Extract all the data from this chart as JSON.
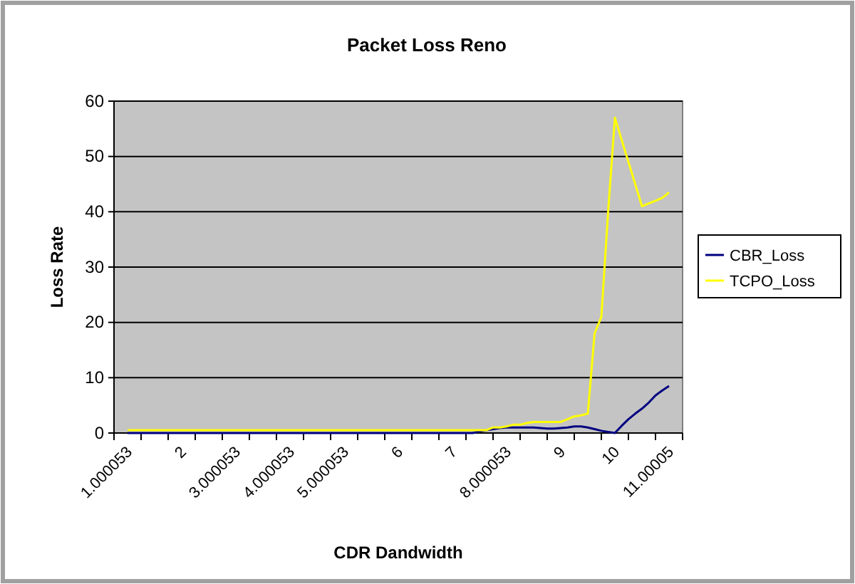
{
  "chart_data": {
    "type": "line",
    "title": "Packet Loss Reno",
    "xlabel": "CDR Dandwidth",
    "ylabel": "Loss Rate",
    "categories": [
      "1.000053",
      null,
      null,
      null,
      null,
      null,
      null,
      null,
      "2",
      null,
      null,
      null,
      null,
      null,
      null,
      null,
      "3.000053",
      null,
      null,
      null,
      null,
      null,
      null,
      null,
      "4.000053",
      null,
      null,
      null,
      null,
      null,
      null,
      null,
      "5.000053",
      null,
      null,
      null,
      null,
      null,
      null,
      null,
      "6",
      null,
      null,
      null,
      null,
      null,
      null,
      null,
      "7",
      null,
      null,
      null,
      null,
      null,
      null,
      null,
      "8.000053",
      null,
      null,
      null,
      null,
      null,
      null,
      null,
      "9",
      null,
      null,
      null,
      null,
      null,
      null,
      null,
      "10",
      null,
      null,
      null,
      null,
      null,
      null,
      null,
      "11.00005"
    ],
    "series": [
      {
        "name": "CBR_Loss",
        "color": "#000080",
        "values": [
          0,
          0,
          0,
          0,
          0,
          0,
          0,
          0,
          0,
          0,
          0,
          0,
          0,
          0,
          0,
          0,
          0,
          0,
          0,
          0,
          0,
          0,
          0,
          0,
          0,
          0,
          0,
          0,
          0,
          0,
          0,
          0,
          0,
          0,
          0,
          0,
          0,
          0,
          0,
          0,
          0,
          0,
          0,
          0,
          0,
          0,
          0,
          0,
          0,
          0,
          0,
          0,
          0.3,
          0.5,
          0.7,
          0.9,
          1,
          1,
          1,
          1,
          1,
          0.9,
          0.8,
          0.8,
          0.9,
          1,
          1.2,
          1.2,
          1,
          0.7,
          0.4,
          0.2,
          0,
          1.3,
          2.5,
          3.5,
          4.4,
          5.5,
          6.8,
          7.7,
          8.5
        ]
      },
      {
        "name": "TCPO_Loss",
        "color": "#ffff00",
        "values": [
          0.5,
          0.5,
          0.5,
          0.5,
          0.5,
          0.5,
          0.5,
          0.5,
          0.5,
          0.5,
          0.5,
          0.5,
          0.5,
          0.5,
          0.5,
          0.5,
          0.5,
          0.5,
          0.5,
          0.5,
          0.5,
          0.5,
          0.5,
          0.5,
          0.5,
          0.5,
          0.5,
          0.5,
          0.5,
          0.5,
          0.5,
          0.5,
          0.5,
          0.5,
          0.5,
          0.5,
          0.5,
          0.5,
          0.5,
          0.5,
          0.5,
          0.5,
          0.5,
          0.5,
          0.5,
          0.5,
          0.5,
          0.5,
          0.5,
          0.5,
          0.5,
          0.5,
          0.5,
          0.5,
          1,
          1,
          1.2,
          1.5,
          1.5,
          1.8,
          2,
          2,
          2,
          2,
          2,
          2.5,
          3,
          3.2,
          3.5,
          18,
          21,
          40,
          57,
          53,
          49,
          45,
          41,
          41.5,
          42,
          42.5,
          43.5
        ]
      }
    ],
    "ylim": [
      0,
      60
    ],
    "yticks": [
      0,
      10,
      20,
      30,
      40,
      50,
      60
    ],
    "grid": "y",
    "legend": "right",
    "marker": "none"
  }
}
